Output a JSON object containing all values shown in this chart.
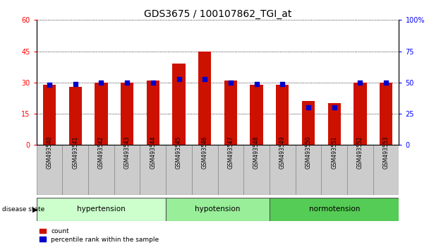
{
  "title": "GDS3675 / 100107862_TGI_at",
  "samples": [
    "GSM493540",
    "GSM493541",
    "GSM493542",
    "GSM493543",
    "GSM493544",
    "GSM493545",
    "GSM493546",
    "GSM493547",
    "GSM493548",
    "GSM493549",
    "GSM493550",
    "GSM493551",
    "GSM493552",
    "GSM493553"
  ],
  "count_values": [
    29,
    28,
    30,
    30,
    31,
    39,
    45,
    31,
    29,
    29,
    21,
    20,
    30,
    30
  ],
  "percentile_values": [
    48,
    49,
    50,
    50,
    50,
    53,
    53,
    50,
    49,
    49,
    30,
    30,
    50,
    50
  ],
  "groups": [
    {
      "label": "hypertension",
      "start": 0,
      "end": 5,
      "color": "#ccffcc"
    },
    {
      "label": "hypotension",
      "start": 5,
      "end": 9,
      "color": "#99ee99"
    },
    {
      "label": "normotension",
      "start": 9,
      "end": 14,
      "color": "#55cc55"
    }
  ],
  "ylim_left": [
    0,
    60
  ],
  "ylim_right": [
    0,
    100
  ],
  "yticks_left": [
    0,
    15,
    30,
    45,
    60
  ],
  "yticks_right": [
    0,
    25,
    50,
    75,
    100
  ],
  "bar_color": "#cc1100",
  "dot_color": "#0000cc",
  "background_color": "#ffffff",
  "tick_label_bg": "#cccccc",
  "title_fontsize": 10,
  "axis_fontsize": 7,
  "label_fontsize": 7
}
